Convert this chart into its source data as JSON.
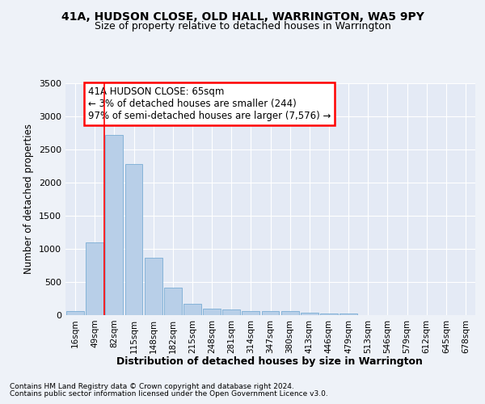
{
  "title1": "41A, HUDSON CLOSE, OLD HALL, WARRINGTON, WA5 9PY",
  "title2": "Size of property relative to detached houses in Warrington",
  "xlabel": "Distribution of detached houses by size in Warrington",
  "ylabel": "Number of detached properties",
  "categories": [
    "16sqm",
    "49sqm",
    "82sqm",
    "115sqm",
    "148sqm",
    "182sqm",
    "215sqm",
    "248sqm",
    "281sqm",
    "314sqm",
    "347sqm",
    "380sqm",
    "413sqm",
    "446sqm",
    "479sqm",
    "513sqm",
    "546sqm",
    "579sqm",
    "612sqm",
    "645sqm",
    "678sqm"
  ],
  "values": [
    55,
    1100,
    2720,
    2280,
    870,
    420,
    170,
    100,
    90,
    55,
    55,
    55,
    35,
    30,
    25,
    5,
    3,
    2,
    1,
    1,
    0
  ],
  "bar_color": "#b8cfe8",
  "bar_edge_color": "#7aadd4",
  "ylim": [
    0,
    3500
  ],
  "yticks": [
    0,
    500,
    1000,
    1500,
    2000,
    2500,
    3000,
    3500
  ],
  "red_line_x": 1.48,
  "annotation_line1": "41A HUDSON CLOSE: 65sqm",
  "annotation_line2": "← 3% of detached houses are smaller (244)",
  "annotation_line3": "97% of semi-detached houses are larger (7,576) →",
  "footnote1": "Contains HM Land Registry data © Crown copyright and database right 2024.",
  "footnote2": "Contains public sector information licensed under the Open Government Licence v3.0.",
  "background_color": "#eef2f8",
  "plot_bg_color": "#e4eaf5",
  "grid_color": "#ffffff"
}
